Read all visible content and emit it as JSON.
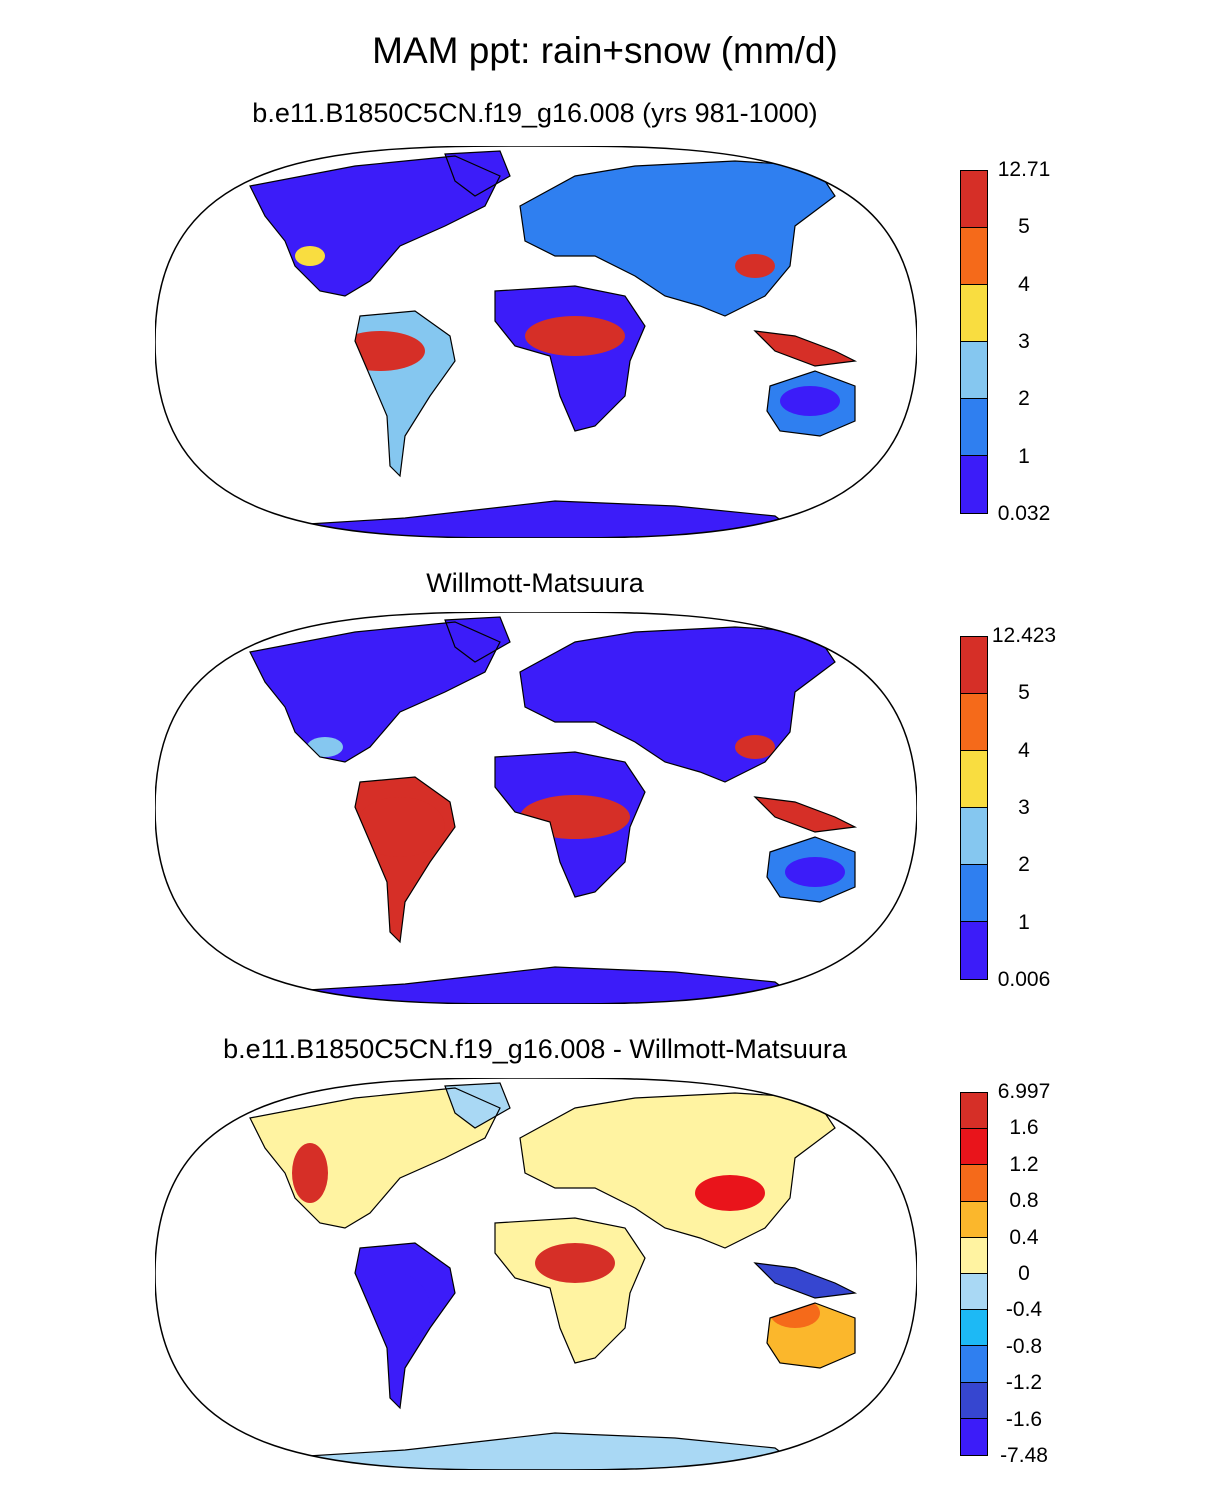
{
  "title": "MAM ppt: rain+snow (mm/d)",
  "panels": [
    {
      "title": "b.e11.B1850C5CN.f19_g16.008 (yrs 981-1000)",
      "colorbar": {
        "labels": [
          "12.71",
          "5",
          "4",
          "3",
          "2",
          "1",
          "0.032"
        ],
        "colors": [
          "#d62f27",
          "#f56a1a",
          "#f9dd40",
          "#85c7f0",
          "#2f7ff0",
          "#3c1cf9"
        ]
      }
    },
    {
      "title": "Willmott-Matsuura",
      "colorbar": {
        "labels": [
          "12.423",
          "5",
          "4",
          "3",
          "2",
          "1",
          "0.006"
        ],
        "colors": [
          "#d62f27",
          "#f56a1a",
          "#f9dd40",
          "#85c7f0",
          "#2f7ff0",
          "#3c1cf9"
        ]
      }
    },
    {
      "title": "b.e11.B1850C5CN.f19_g16.008 - Willmott-Matsuura",
      "colorbar": {
        "labels": [
          "6.997",
          "1.6",
          "1.2",
          "0.8",
          "0.4",
          "0",
          "-0.4",
          "-0.8",
          "-1.2",
          "-1.6",
          "-7.48"
        ],
        "colors": [
          "#d62f27",
          "#e9141b",
          "#f56a1a",
          "#fbb72c",
          "#fff3a1",
          "#a9d8f4",
          "#1db9f5",
          "#2f7ff0",
          "#3646d0",
          "#3c1cf9"
        ]
      }
    }
  ]
}
